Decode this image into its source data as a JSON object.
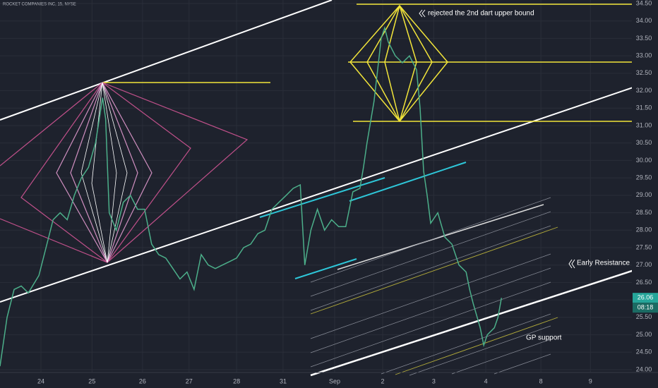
{
  "chart_data": {
    "type": "line",
    "title": "ROCKET COMPANIES INC, 15, NYSE",
    "x": [
      0,
      1.4,
      2.8,
      4.2,
      5.6,
      7.7,
      9.1,
      10.5,
      11.9,
      13.3,
      14.7,
      16.1,
      17.5,
      18.9,
      20.3,
      20.9,
      21.6,
      23.0,
      24.4,
      25.8,
      27.2,
      28.6,
      30.0,
      31.4,
      32.8,
      34.2,
      35.6,
      37.0,
      38.4,
      39.8,
      41.2,
      42.6,
      44.0,
      45.4,
      46.8,
      48.2,
      49.6,
      51.0,
      52.4,
      53.8,
      55.2,
      56.6,
      58.0,
      59.4,
      60.3,
      61.5,
      62.8,
      64.2,
      65.6,
      67.0,
      68.4,
      69.8,
      71.2,
      71.9,
      72.6,
      74.0,
      74.7,
      75.4,
      76.1,
      76.8,
      78.2,
      79.6,
      81.0,
      82.4,
      83.1,
      83.8,
      84.5,
      85.2,
      86.6,
      88.0,
      89.4,
      90.8,
      92.2,
      92.9,
      93.6,
      95.0,
      95.7,
      96.4,
      97.8,
      98.5,
      99.2
    ],
    "values": [
      24.1,
      25.5,
      26.3,
      26.4,
      26.2,
      26.7,
      27.5,
      28.3,
      28.5,
      28.3,
      29.0,
      29.5,
      29.8,
      30.5,
      31.8,
      31.2,
      28.5,
      28.0,
      28.8,
      29.0,
      28.6,
      28.6,
      27.6,
      27.3,
      27.2,
      26.9,
      26.6,
      26.8,
      26.3,
      27.3,
      27.0,
      26.9,
      27.0,
      27.1,
      27.2,
      27.5,
      27.6,
      27.9,
      28.0,
      28.6,
      28.8,
      29.0,
      29.2,
      29.3,
      27.0,
      28.0,
      28.6,
      28.0,
      28.3,
      28.1,
      28.1,
      29.1,
      29.2,
      29.8,
      30.5,
      31.7,
      32.6,
      33.5,
      33.8,
      33.4,
      33.0,
      32.8,
      33.0,
      32.6,
      31.5,
      29.7,
      29.0,
      28.2,
      28.5,
      27.8,
      27.6,
      27.0,
      26.8,
      26.3,
      25.9,
      25.2,
      24.7,
      25.0,
      25.2,
      25.5,
      26.06
    ],
    "color": "#4caf8a",
    "xlim": [
      0,
      125
    ],
    "xticks": [
      {
        "value": 8.1,
        "label": "24"
      },
      {
        "value": 18.2,
        "label": "25"
      },
      {
        "value": 28.2,
        "label": "26"
      },
      {
        "value": 37.4,
        "label": "27"
      },
      {
        "value": 46.8,
        "label": "28"
      },
      {
        "value": 56.0,
        "label": "31"
      },
      {
        "value": 66.2,
        "label": "Sep"
      },
      {
        "value": 75.7,
        "label": "2"
      },
      {
        "value": 85.8,
        "label": "3"
      },
      {
        "value": 96.1,
        "label": "4"
      },
      {
        "value": 107.0,
        "label": "8"
      },
      {
        "value": 116.8,
        "label": "9"
      }
    ],
    "ylim": [
      24.0,
      34.5
    ],
    "yticks": [
      {
        "value": 24,
        "label": "24.00"
      },
      {
        "value": 24.5,
        "label": "24.50"
      },
      {
        "value": 25,
        "label": "25.00"
      },
      {
        "value": 25.5,
        "label": "25.50"
      },
      {
        "value": 26,
        "label": "26.00"
      },
      {
        "value": 26.5,
        "label": "26.50"
      },
      {
        "value": 27,
        "label": "27.00"
      },
      {
        "value": 27.5,
        "label": "27.50"
      },
      {
        "value": 28,
        "label": "28.00"
      },
      {
        "value": 28.5,
        "label": "28.50"
      },
      {
        "value": 29,
        "label": "29.00"
      },
      {
        "value": 29.5,
        "label": "29.50"
      },
      {
        "value": 30,
        "label": "30.00"
      },
      {
        "value": 30.5,
        "label": "30.50"
      },
      {
        "value": 31,
        "label": "31.00"
      },
      {
        "value": 31.5,
        "label": "31.50"
      },
      {
        "value": 32,
        "label": "32.00"
      },
      {
        "value": 32.5,
        "label": "32.50"
      },
      {
        "value": 33,
        "label": "33.00"
      },
      {
        "value": 33.5,
        "label": "33.50"
      },
      {
        "value": 34,
        "label": "34.00"
      },
      {
        "value": 34.5,
        "label": "34.50"
      }
    ],
    "grid": true,
    "last_price": 26.06,
    "last_price_label": "26.06",
    "countdown": "08:18",
    "annotations": [
      "rejected the 2nd dart upper bound",
      "Early Resistance",
      "GP support"
    ]
  }
}
